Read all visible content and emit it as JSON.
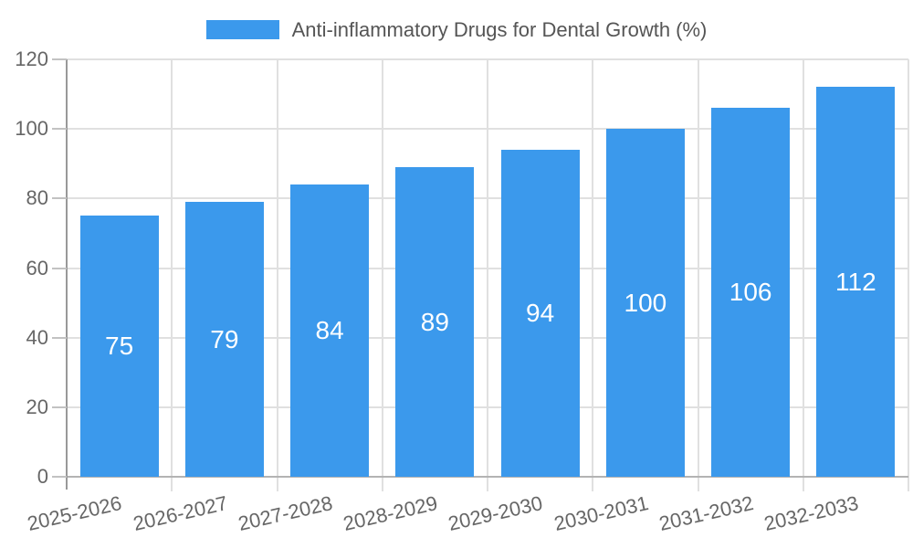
{
  "chart_data": {
    "type": "bar",
    "title": "Anti-inflammatory Drugs for Dental Growth (%)",
    "categories": [
      "2025-2026",
      "2026-2027",
      "2027-2028",
      "2028-2029",
      "2029-2030",
      "2030-2031",
      "2031-2032",
      "2032-2033"
    ],
    "values": [
      75,
      79,
      84,
      89,
      94,
      100,
      106,
      112
    ],
    "xlabel": "",
    "ylabel": "",
    "ylim": [
      0,
      120
    ],
    "yticks": [
      0,
      20,
      40,
      60,
      80,
      100,
      120
    ],
    "grid": "both",
    "legend_position": "top",
    "value_labels_shown_inside_bars": true
  },
  "legend": {
    "items": [
      {
        "label": "Anti-inflammatory Drugs for Dental Growth (%)",
        "swatch_color": "#3B99EC"
      }
    ]
  },
  "colors": {
    "bar": "#3B99EC",
    "grid": "#E0E0E0",
    "y_axis_line": "#999999",
    "x_axis_line": "#B3B3B3",
    "y_tick_mark": "#C2C2C2",
    "tick_text": "#666666",
    "legend_text": "#555555",
    "bar_value_text": "#FFFFFF",
    "background": "#FFFFFF"
  }
}
